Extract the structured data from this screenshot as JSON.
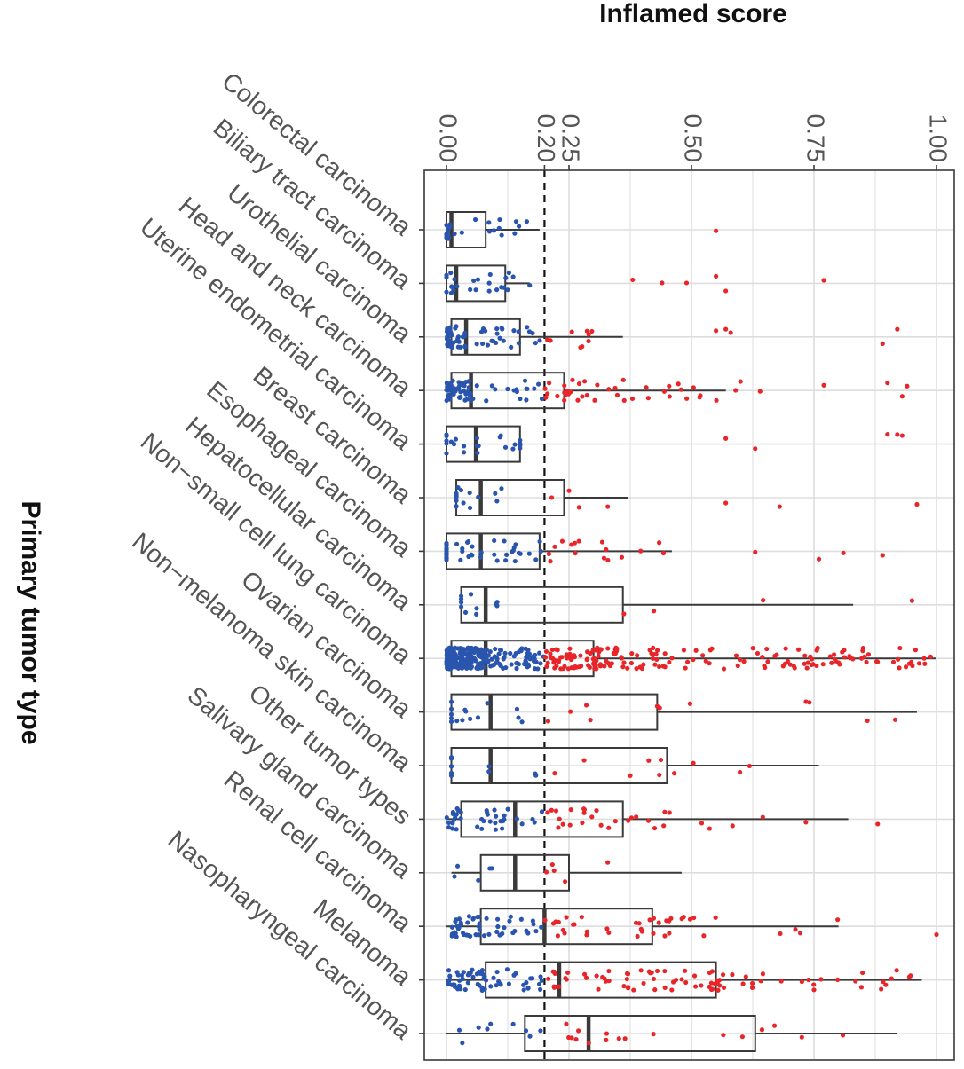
{
  "chart_data": {
    "type": "boxplot",
    "title": "Inflamed score",
    "xlabel": "Inflamed score",
    "ylabel": "Primary tumor type",
    "xlim": [
      0,
      1
    ],
    "x_ticks": [
      0.0,
      0.2,
      0.25,
      0.5,
      0.75,
      1.0
    ],
    "x_tick_labels": [
      "0.00",
      "0.20",
      "0.25",
      "0.50",
      "0.75",
      "1.00"
    ],
    "threshold": 0.2,
    "colors": {
      "below_threshold": "#2a55ae",
      "above_threshold": "#e8262a",
      "box_stroke": "#3a3a3a",
      "grid": "#dedede",
      "tick_text": "#555555",
      "title_text": "#111111"
    },
    "categories": [
      "Colorectal carcinoma",
      "Biliary tract carcinoma",
      "Urothelial carcinoma",
      "Head and neck carcinoma",
      "Uterine endometrial carcinoma",
      "Breast carcinoma",
      "Esophageal carcinoma",
      "Hepatocellular carcinoma",
      "Non−small cell lung carcinoma",
      "Ovarian carcinoma",
      "Non−melanoma skin carcinoma",
      "Other tumor types",
      "Salivary gland carcinoma",
      "Renal cell carcinoma",
      "Melanoma",
      "Nasopharyngeal carcinoma"
    ],
    "boxes": [
      {
        "min": 0.0,
        "q1": 0.0,
        "median": 0.01,
        "q3": 0.08,
        "max": 0.19,
        "n": 25,
        "outliers": [
          0.55
        ]
      },
      {
        "min": 0.0,
        "q1": 0.0,
        "median": 0.02,
        "q3": 0.12,
        "max": 0.17,
        "n": 25,
        "outliers": [
          0.38,
          0.44,
          0.49,
          0.55,
          0.57,
          0.77
        ]
      },
      {
        "min": 0.0,
        "q1": 0.01,
        "median": 0.04,
        "q3": 0.15,
        "max": 0.36,
        "n": 70,
        "outliers": [
          0.55,
          0.57,
          0.58,
          0.89,
          0.92
        ]
      },
      {
        "min": 0.0,
        "q1": 0.01,
        "median": 0.05,
        "q3": 0.24,
        "max": 0.57,
        "n": 110,
        "outliers": [
          0.59,
          0.6,
          0.64,
          0.77,
          0.9,
          0.93,
          0.94
        ]
      },
      {
        "min": 0.0,
        "q1": 0.0,
        "median": 0.06,
        "q3": 0.15,
        "max": 0.15,
        "n": 24,
        "outliers": [
          0.57,
          0.63,
          0.9,
          0.92,
          0.93
        ]
      },
      {
        "min": 0.02,
        "q1": 0.02,
        "median": 0.07,
        "q3": 0.24,
        "max": 0.37,
        "n": 20,
        "outliers": [
          0.57,
          0.68,
          0.96
        ]
      },
      {
        "min": 0.0,
        "q1": 0.0,
        "median": 0.07,
        "q3": 0.19,
        "max": 0.46,
        "n": 60,
        "outliers": [
          0.63,
          0.76,
          0.81,
          0.89
        ]
      },
      {
        "min": 0.03,
        "q1": 0.03,
        "median": 0.08,
        "q3": 0.36,
        "max": 0.83,
        "n": 14,
        "outliers": [
          0.95
        ]
      },
      {
        "min": 0.0,
        "q1": 0.01,
        "median": 0.08,
        "q3": 0.3,
        "max": 1.0,
        "n": 520,
        "outliers": []
      },
      {
        "min": 0.01,
        "q1": 0.01,
        "median": 0.09,
        "q3": 0.43,
        "max": 0.96,
        "n": 26,
        "outliers": []
      },
      {
        "min": 0.01,
        "q1": 0.01,
        "median": 0.09,
        "q3": 0.45,
        "max": 0.76,
        "n": 22,
        "outliers": []
      },
      {
        "min": 0.0,
        "q1": 0.03,
        "median": 0.14,
        "q3": 0.36,
        "max": 0.82,
        "n": 70,
        "outliers": [
          0.88
        ]
      },
      {
        "min": 0.01,
        "q1": 0.07,
        "median": 0.14,
        "q3": 0.25,
        "max": 0.48,
        "n": 10,
        "outliers": []
      },
      {
        "min": 0.0,
        "q1": 0.07,
        "median": 0.2,
        "q3": 0.42,
        "max": 0.8,
        "n": 90,
        "outliers": [
          1.0
        ]
      },
      {
        "min": 0.0,
        "q1": 0.08,
        "median": 0.23,
        "q3": 0.55,
        "max": 0.97,
        "n": 150,
        "outliers": []
      },
      {
        "min": 0.0,
        "q1": 0.16,
        "median": 0.29,
        "q3": 0.63,
        "max": 0.92,
        "n": 26,
        "outliers": []
      }
    ]
  }
}
